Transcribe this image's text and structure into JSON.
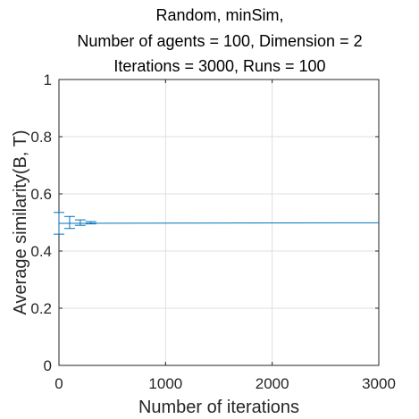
{
  "chart_data": {
    "type": "line",
    "title_lines": [
      "Random, minSim,",
      "Number of agents = 100, Dimension = 2",
      "Iterations = 3000, Runs = 100"
    ],
    "xlabel": "Number of iterations",
    "ylabel": "Average similarity(B, T)",
    "xlim": [
      0,
      3000
    ],
    "ylim": [
      0,
      1
    ],
    "x_ticks": [
      "0",
      "1000",
      "2000",
      "3000"
    ],
    "y_ticks": [
      "0",
      "0.2",
      "0.4",
      "0.6",
      "0.8",
      "1"
    ],
    "grid": true,
    "series_color": "#0072BD",
    "series": [
      {
        "x": [
          0,
          3000
        ],
        "y": [
          0.497,
          0.499
        ]
      }
    ],
    "error_bars": [
      {
        "x": 0,
        "y": 0.497,
        "lower": 0.459,
        "upper": 0.535
      },
      {
        "x": 100,
        "y": 0.5,
        "lower": 0.479,
        "upper": 0.521
      },
      {
        "x": 200,
        "y": 0.499,
        "lower": 0.49,
        "upper": 0.509
      },
      {
        "x": 300,
        "y": 0.499,
        "lower": 0.495,
        "upper": 0.503
      }
    ]
  }
}
